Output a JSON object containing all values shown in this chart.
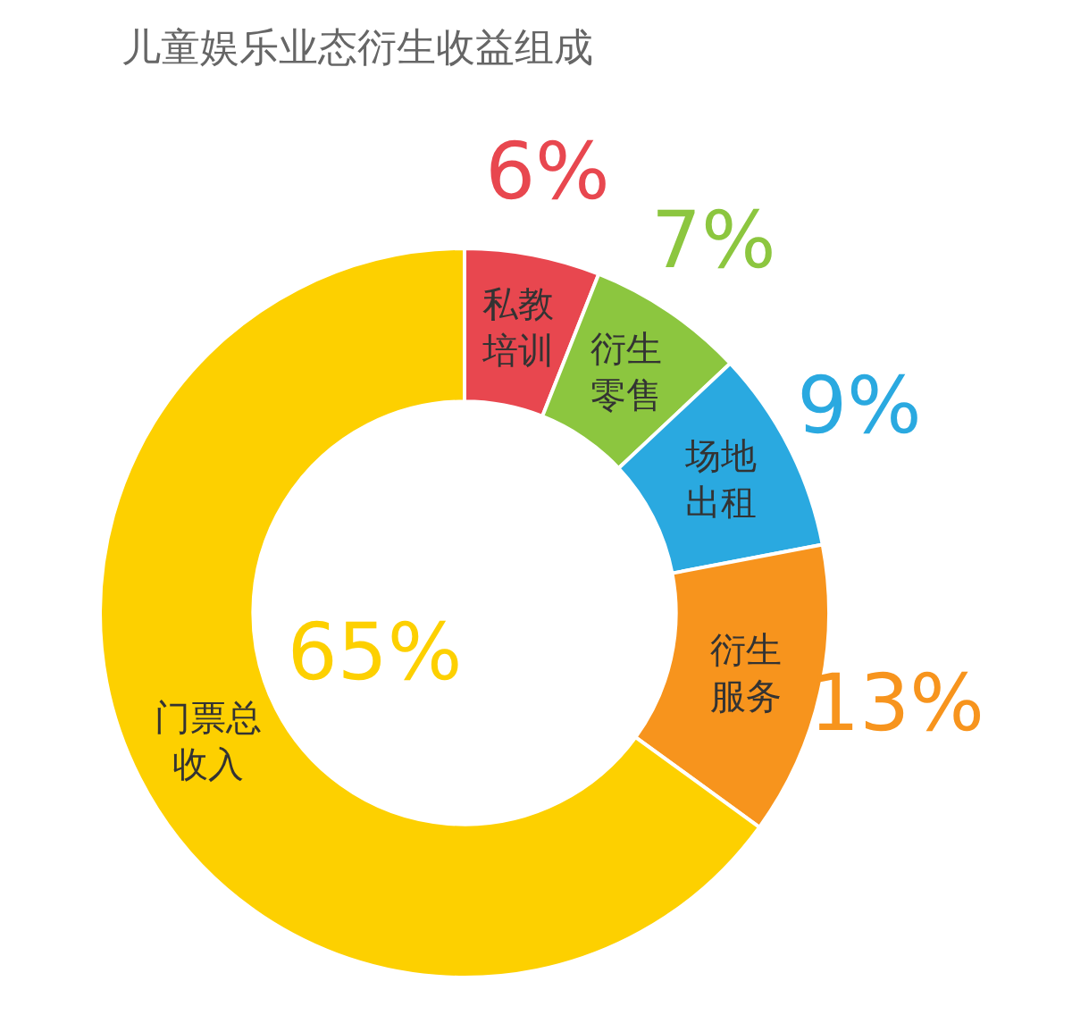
{
  "chart_data": {
    "type": "donut",
    "title": "儿童娱乐业态衍生收益组成",
    "categories": [
      "私教培训",
      "衍生零售",
      "场地出租",
      "衍生服务",
      "门票总收入"
    ],
    "values": [
      6,
      7,
      9,
      13,
      65
    ],
    "value_labels": [
      "6%",
      "7%",
      "9%",
      "13%",
      "65%"
    ],
    "colors": [
      "#e8474f",
      "#8cc63f",
      "#2aa9e0",
      "#f7941d",
      "#fdd000"
    ],
    "legend": false
  }
}
